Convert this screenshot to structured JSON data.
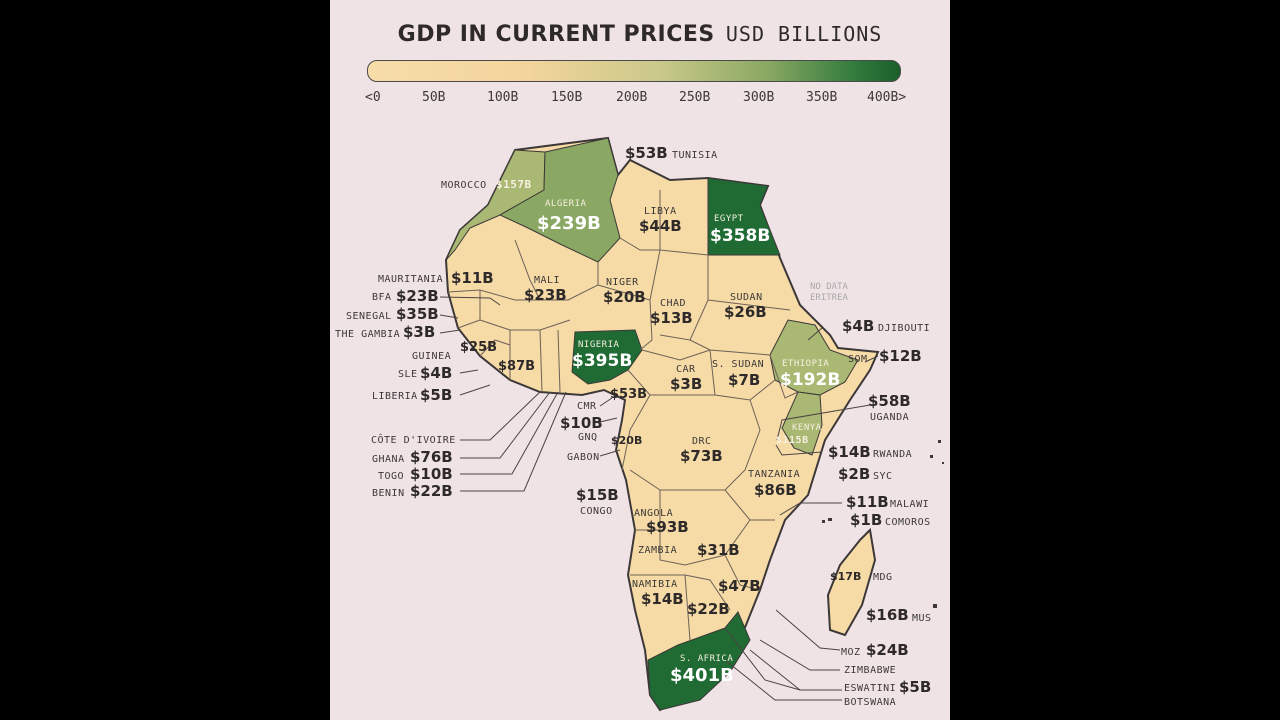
{
  "title": {
    "main": "GDP IN CURRENT PRICES",
    "unit": "USD BILLIONS"
  },
  "scale": {
    "ticks": [
      "<0",
      "50B",
      "100B",
      "150B",
      "200B",
      "250B",
      "300B",
      "350B",
      "400B>"
    ]
  },
  "colors": {
    "background": "#f0e3e6",
    "low": "#f6dba6",
    "mid": "#a9b872",
    "high": "#1f6b33"
  },
  "countries": {
    "tunisia": {
      "name": "TUNISIA",
      "value": "$53B",
      "gdp": 53
    },
    "morocco": {
      "name": "MOROCCO",
      "value": "$157B",
      "gdp": 157
    },
    "algeria": {
      "name": "ALGERIA",
      "value": "$239B",
      "gdp": 239
    },
    "libya": {
      "name": "LIBYA",
      "value": "$44B",
      "gdp": 44
    },
    "egypt": {
      "name": "EGYPT",
      "value": "$358B",
      "gdp": 358
    },
    "mauritania": {
      "name": "MAURITANIA",
      "value": "$11B",
      "gdp": 11
    },
    "mali": {
      "name": "MALI",
      "value": "$23B",
      "gdp": 23
    },
    "niger": {
      "name": "NIGER",
      "value": "$20B",
      "gdp": 20
    },
    "chad": {
      "name": "CHAD",
      "value": "$13B",
      "gdp": 13
    },
    "sudan": {
      "name": "SUDAN",
      "value": "$26B",
      "gdp": 26
    },
    "eritrea": {
      "name": "ERITREA",
      "value": "NO DATA"
    },
    "bfa": {
      "name": "BFA",
      "value": "$23B",
      "gdp": 23
    },
    "senegal": {
      "name": "SENEGAL",
      "value": "$35B",
      "gdp": 35
    },
    "gambia": {
      "name": "THE GAMBIA",
      "value": "$3B",
      "gdp": 3
    },
    "guinea": {
      "name": "GUINEA",
      "value": "$25B",
      "gdp": 25
    },
    "sle": {
      "name": "SLE",
      "value": "$4B",
      "gdp": 4
    },
    "liberia": {
      "name": "LIBERIA",
      "value": "$5B",
      "gdp": 5
    },
    "civ": {
      "name": "CÔTE D'IVOIRE",
      "value": "$87B",
      "gdp": 87
    },
    "ghana": {
      "name": "GHANA",
      "value": "$76B",
      "gdp": 76
    },
    "togo": {
      "name": "TOGO",
      "value": "$10B",
      "gdp": 10
    },
    "benin": {
      "name": "BENIN",
      "value": "$22B",
      "gdp": 22
    },
    "nigeria": {
      "name": "NIGERIA",
      "value": "$395B",
      "gdp": 395
    },
    "cmr": {
      "name": "CMR",
      "value": "$53B",
      "gdp": 53
    },
    "gnq": {
      "name": "GNQ",
      "value": "$10B",
      "gdp": 10
    },
    "gabon": {
      "name": "GABON",
      "value": "$20B",
      "gdp": 20
    },
    "congo": {
      "name": "CONGO",
      "value": "$15B",
      "gdp": 15
    },
    "car": {
      "name": "CAR",
      "value": "$3B",
      "gdp": 3
    },
    "ssudan": {
      "name": "S. SUDAN",
      "value": "$7B",
      "gdp": 7
    },
    "ethiopia": {
      "name": "ETHIOPIA",
      "value": "$192B",
      "gdp": 192
    },
    "djibouti": {
      "name": "DJIBOUTI",
      "value": "$4B",
      "gdp": 4
    },
    "somalia": {
      "name": "SOM",
      "value": "$12B",
      "gdp": 12
    },
    "uganda": {
      "name": "UGANDA",
      "value": "$58B",
      "gdp": 58
    },
    "kenya": {
      "name": "KENYA",
      "value": "$115B",
      "gdp": 115
    },
    "rwanda": {
      "name": "RWANDA",
      "value": "$14B",
      "gdp": 14
    },
    "seychelles": {
      "name": "SYC",
      "value": "$2B",
      "gdp": 2
    },
    "drc": {
      "name": "DRC",
      "value": "$73B",
      "gdp": 73
    },
    "tanzania": {
      "name": "TANZANIA",
      "value": "$86B",
      "gdp": 86
    },
    "malawi": {
      "name": "MALAWI",
      "value": "$11B",
      "gdp": 11
    },
    "comoros": {
      "name": "COMOROS",
      "value": "$1B",
      "gdp": 1
    },
    "angola": {
      "name": "ANGOLA",
      "value": "$93B",
      "gdp": 93
    },
    "zambia": {
      "name": "ZAMBIA",
      "value": "$31B",
      "gdp": 31
    },
    "madagascar": {
      "name": "MDG",
      "value": "$17B",
      "gdp": 17
    },
    "mauritius": {
      "name": "MUS",
      "value": "$16B",
      "gdp": 16
    },
    "namibia": {
      "name": "NAMIBIA",
      "value": "$14B",
      "gdp": 14
    },
    "botswana": {
      "name": "BOTSWANA",
      "value": "$22B",
      "gdp": 22
    },
    "zimbabwe": {
      "name": "ZIMBABWE",
      "value": "$47B",
      "gdp": 47
    },
    "mozambique": {
      "name": "MOZ",
      "value": "$24B",
      "gdp": 24
    },
    "eswatini": {
      "name": "ESWATINI",
      "value": "$5B",
      "gdp": 5
    },
    "safrica": {
      "name": "S. AFRICA",
      "value": "$401B",
      "gdp": 401
    }
  }
}
